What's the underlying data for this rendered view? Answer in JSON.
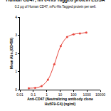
{
  "chart_data": {
    "type": "line",
    "title": "Human CD47, mFc-His Tagged protein ELISA",
    "subtitle": "0.2 μg of Human CD47, mFc-His Tagged protein per well.",
    "x_label": [
      "Anti-CD47 (Neutralizing antibody clone",
      "Hu5F9-G4) (ng/ml)"
    ],
    "y_label": "Mean Abs.(OD450)",
    "x": [
      0.046,
      0.137,
      0.412,
      1.23,
      3.7,
      11.1,
      33.3,
      100,
      300,
      900
    ],
    "values": [
      0.08,
      0.1,
      0.2,
      0.55,
      1.4,
      2.4,
      2.9,
      3.05,
      3.1,
      3.15
    ],
    "color": "#e8483f",
    "marker": "circle",
    "line_style": "spline",
    "log": "x",
    "xlim": [
      0.01,
      10000
    ],
    "xticks": [
      0.01,
      0.1,
      1,
      10,
      100,
      1000,
      10000
    ],
    "ylim": [
      0,
      4
    ],
    "yticks": [
      0,
      1,
      2,
      3,
      4
    ],
    "grid": false
  }
}
